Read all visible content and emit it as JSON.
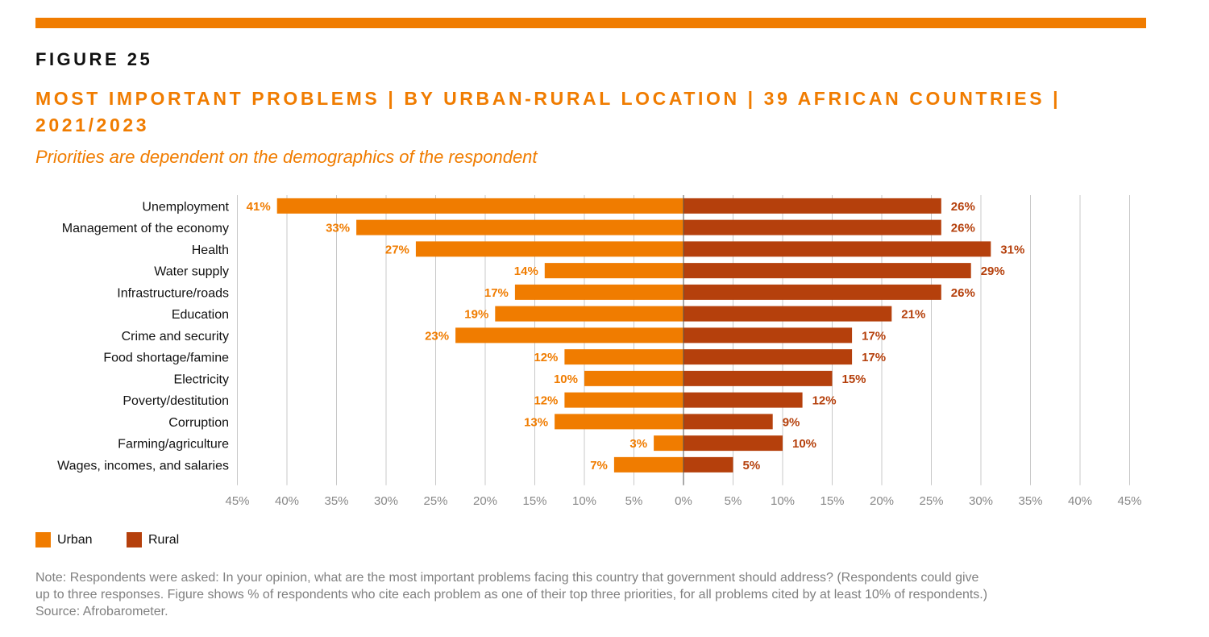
{
  "figure_label": "FIGURE 25",
  "title": "MOST IMPORTANT PROBLEMS | BY URBAN-RURAL LOCATION | 39 AFRICAN COUNTRIES | 2021/2023",
  "subtitle": "Priorities are dependent on the demographics of the respondent",
  "colors": {
    "accent": "#f07c00",
    "urban": "#f07c00",
    "rural": "#b5400c",
    "grid": "#c8c8c8",
    "note": "#808080"
  },
  "legend": [
    {
      "label": "Urban",
      "color": "#f07c00"
    },
    {
      "label": "Rural",
      "color": "#b5400c"
    }
  ],
  "note_lines": [
    "Note: Respondents were asked: In your opinion, what are the most important problems facing this country that government should address? (Respondents could give",
    "up to three responses. Figure shows % of respondents who cite each problem as one of their top three priorities, for all problems cited by at least 10% of respondents.)",
    "Source: Afrobarometer."
  ],
  "chart_data": {
    "type": "bar",
    "orientation": "horizontal-diverging",
    "categories": [
      "Unemployment",
      "Management of the economy",
      "Health",
      "Water supply",
      "Infrastructure/roads",
      "Education",
      "Crime and security",
      "Food shortage/famine",
      "Electricity",
      "Poverty/destitution",
      "Corruption",
      "Farming/agriculture",
      "Wages, incomes, and salaries"
    ],
    "series": [
      {
        "name": "Urban",
        "direction": "left",
        "values": [
          41,
          33,
          27,
          14,
          17,
          19,
          23,
          12,
          10,
          12,
          13,
          3,
          7
        ],
        "labels": [
          "41%",
          "33%",
          "27%",
          "14%",
          "17%",
          "19%",
          "23%",
          "12%",
          "10%",
          "12%",
          "13%",
          "3%",
          "7%"
        ]
      },
      {
        "name": "Rural",
        "direction": "right",
        "values": [
          26,
          26,
          31,
          29,
          26,
          21,
          17,
          17,
          15,
          12,
          9,
          10,
          5
        ],
        "labels": [
          "26%",
          "26%",
          "31%",
          "29%",
          "26%",
          "21%",
          "17%",
          "17%",
          "15%",
          "12%",
          "9%",
          "10%",
          "5%"
        ]
      }
    ],
    "xlim": [
      -45,
      45
    ],
    "xticks": [
      -45,
      -40,
      -35,
      -30,
      -25,
      -20,
      -15,
      -10,
      -5,
      0,
      5,
      10,
      15,
      20,
      25,
      30,
      35,
      40,
      45
    ],
    "xtick_labels": [
      "45%",
      "40%",
      "35%",
      "30%",
      "25%",
      "20%",
      "15%",
      "10%",
      "5%",
      "0%",
      "5%",
      "10%",
      "15%",
      "20%",
      "25%",
      "30%",
      "35%",
      "40%",
      "45%"
    ],
    "grid": "vertical",
    "legend_position": "bottom-left"
  }
}
